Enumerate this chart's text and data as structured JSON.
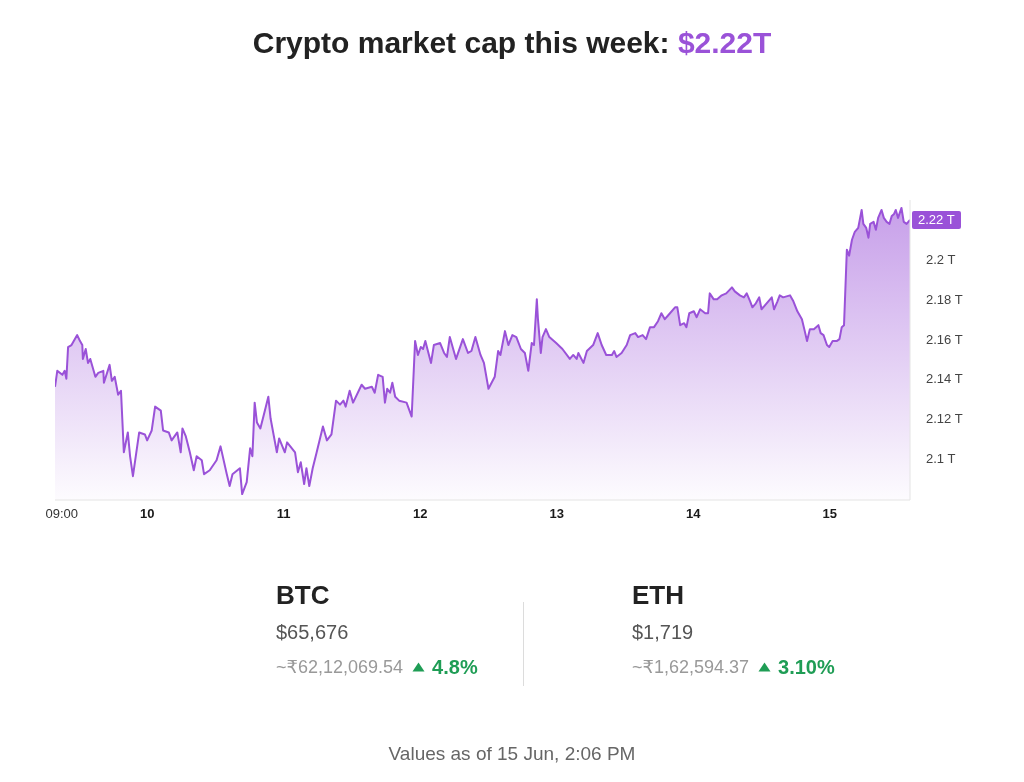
{
  "chart_data": [
    {
      "type": "area",
      "title": "Crypto market cap this week: $2.22T",
      "color": "#9a52d8",
      "x": [
        "--06-09T07:48",
        "--06-09T08:12",
        "--06-09T09:06",
        "--06-09T09:30",
        "--06-09T09:48",
        "--06-09T10:06",
        "--06-09T10:42",
        "--06-09T11:42",
        "--06-09T12:12",
        "--06-09T12:36",
        "--06-09T12:42",
        "--06-09T13:12",
        "--06-09T13:36",
        "--06-09T14:00",
        "--06-09T14:54",
        "--06-09T15:24",
        "--06-09T16:18",
        "--06-09T16:24",
        "--06-09T17:24",
        "--06-09T17:48",
        "--06-09T18:18",
        "--06-09T18:54",
        "--06-09T19:24",
        "--06-09T19:54",
        "--06-09T20:36",
        "--06-09T21:00",
        "--06-09T21:30",
        "--06-09T22:36",
        "--06-09T23:36",
        "--06-10T00:00",
        "--06-10T00:48",
        "--06-10T01:24",
        "--06-10T02:24",
        "--06-10T02:48",
        "--06-10T03:48",
        "--06-10T04:18",
        "--06-10T05:18",
        "--06-10T05:54",
        "--06-10T06:12",
        "--06-10T06:48",
        "--06-10T07:30",
        "--06-10T08:12",
        "--06-10T08:42",
        "--06-10T09:36",
        "--06-10T10:00",
        "--06-10T11:00",
        "--06-10T12:12",
        "--06-10T12:54",
        "--06-10T14:00",
        "--06-10T14:30",
        "--06-10T15:00",
        "--06-10T16:18",
        "--06-10T16:42",
        "--06-10T17:30",
        "--06-10T18:06",
        "--06-10T18:30",
        "--06-10T18:54",
        "--06-10T19:18",
        "--06-10T19:54",
        "--06-10T20:42",
        "--06-10T21:18",
        "--06-10T21:42",
        "--06-10T22:48",
        "--06-10T23:12",
        "--06-11T00:12",
        "--06-11T00:36",
        "--06-11T02:00",
        "--06-11T02:30",
        "--06-11T03:00",
        "--06-11T03:36",
        "--06-11T04:00",
        "--06-11T04:30",
        "--06-11T05:06",
        "--06-11T05:48",
        "--06-11T06:54",
        "--06-11T07:36",
        "--06-11T08:24",
        "--06-11T09:12",
        "--06-11T09:54",
        "--06-11T10:30",
        "--06-11T10:54",
        "--06-11T11:36",
        "--06-11T12:12",
        "--06-11T13:42",
        "--06-11T14:18",
        "--06-11T15:30",
        "--06-11T16:00",
        "--06-11T16:36",
        "--06-11T17:24",
        "--06-11T17:48",
        "--06-11T18:12",
        "--06-11T18:42",
        "--06-11T19:06",
        "--06-11T19:36",
        "--06-11T20:18",
        "--06-11T21:36",
        "--06-11T22:30",
        "--06-11T23:06",
        "--06-11T23:36",
        "--06-12T00:06",
        "--06-12T00:30",
        "--06-12T00:54",
        "--06-12T01:54",
        "--06-12T02:24",
        "--06-12T03:30",
        "--06-12T04:12",
        "--06-12T04:42",
        "--06-12T05:12",
        "--06-12T06:18",
        "--06-12T07:30",
        "--06-12T08:24",
        "--06-12T09:00",
        "--06-12T09:42",
        "--06-12T10:36",
        "--06-12T11:12",
        "--06-12T12:00",
        "--06-12T13:06",
        "--06-12T13:42",
        "--06-12T14:06",
        "--06-12T14:54",
        "--06-12T15:30",
        "--06-12T16:12",
        "--06-12T16:54",
        "--06-12T17:42",
        "--06-12T18:24",
        "--06-12T19:00",
        "--06-12T19:36",
        "--06-12T20:00",
        "--06-12T20:30",
        "--06-12T20:42",
        "--06-12T21:12",
        "--06-12T21:30",
        "--06-12T22:06",
        "--06-12T22:42",
        "--06-12T23:54",
        "--06-13T01:00",
        "--06-13T02:18",
        "--06-13T02:54",
        "--06-13T03:30",
        "--06-13T03:48",
        "--06-13T04:42",
        "--06-13T05:18",
        "--06-13T06:24",
        "--06-13T07:12",
        "--06-13T07:54",
        "--06-13T08:42",
        "--06-13T09:42",
        "--06-13T10:06",
        "--06-13T10:30",
        "--06-13T11:24",
        "--06-13T12:18",
        "--06-13T12:54",
        "--06-13T13:48",
        "--06-13T14:18",
        "--06-13T15:06",
        "--06-13T15:42",
        "--06-13T16:24",
        "--06-13T17:06",
        "--06-13T17:48",
        "--06-13T18:24",
        "--06-13T19:00",
        "--06-13T19:36",
        "--06-13T20:48",
        "--06-13T21:12",
        "--06-13T21:42",
        "--06-13T22:24",
        "--06-13T22:48",
        "--06-13T23:18",
        "--06-14T00:06",
        "--06-14T00:36",
        "--06-14T01:12",
        "--06-14T02:06",
        "--06-14T02:36",
        "--06-14T02:54",
        "--06-14T03:36",
        "--06-14T04:12",
        "--06-14T05:00",
        "--06-14T05:48",
        "--06-14T06:48",
        "--06-14T07:18",
        "--06-14T08:12",
        "--06-14T08:54",
        "--06-14T09:24",
        "--06-14T10:00",
        "--06-14T10:24",
        "--06-14T11:00",
        "--06-14T11:36",
        "--06-14T12:00",
        "--06-14T12:54",
        "--06-14T13:48",
        "--06-14T14:12",
        "--06-14T14:48",
        "--06-14T15:12",
        "--06-14T15:48",
        "--06-14T17:00",
        "--06-14T17:36",
        "--06-14T18:18",
        "--06-14T19:06",
        "--06-14T19:36",
        "--06-14T20:00",
        "--06-14T20:30",
        "--06-14T21:12",
        "--06-14T22:00",
        "--06-14T22:24",
        "--06-14T22:54",
        "--06-14T23:30",
        "--06-14T23:54",
        "--06-15T00:30",
        "--06-15T01:12",
        "--06-15T01:42",
        "--06-15T02:06",
        "--06-15T02:30",
        "--06-15T03:00",
        "--06-15T03:24",
        "--06-15T03:54",
        "--06-15T04:24",
        "--06-15T05:00",
        "--06-15T05:36",
        "--06-15T05:54",
        "--06-15T06:24",
        "--06-15T06:48",
        "--06-15T07:06",
        "--06-15T07:42",
        "--06-15T08:06",
        "--06-15T08:30",
        "--06-15T09:06",
        "--06-15T09:30",
        "--06-15T10:00",
        "--06-15T10:30",
        "--06-15T10:54",
        "--06-15T11:18",
        "--06-15T11:36",
        "--06-15T12:00",
        "--06-15T12:36",
        "--06-15T13:00",
        "--06-15T13:30",
        "--06-15T14:06"
      ],
      "values": [
        2.136,
        2.144,
        2.142,
        2.144,
        2.14,
        2.156,
        2.157,
        2.162,
        2.159,
        2.157,
        2.15,
        2.155,
        2.148,
        2.15,
        2.141,
        2.143,
        2.144,
        2.138,
        2.147,
        2.139,
        2.141,
        2.132,
        2.134,
        2.103,
        2.113,
        2.101,
        2.091,
        2.113,
        2.112,
        2.109,
        2.114,
        2.126,
        2.124,
        2.114,
        2.113,
        2.109,
        2.113,
        2.103,
        2.115,
        2.111,
        2.103,
        2.094,
        2.101,
        2.099,
        2.092,
        2.094,
        2.099,
        2.106,
        2.092,
        2.086,
        2.092,
        2.095,
        2.082,
        2.088,
        2.105,
        2.101,
        2.128,
        2.118,
        2.115,
        2.124,
        2.131,
        2.12,
        2.103,
        2.11,
        2.103,
        2.108,
        2.103,
        2.093,
        2.098,
        2.087,
        2.095,
        2.086,
        2.095,
        2.103,
        2.116,
        2.109,
        2.112,
        2.129,
        2.127,
        2.129,
        2.126,
        2.134,
        2.128,
        2.137,
        2.135,
        2.136,
        2.133,
        2.142,
        2.141,
        2.128,
        2.135,
        2.133,
        2.138,
        2.131,
        2.129,
        2.128,
        2.121,
        2.159,
        2.152,
        2.156,
        2.155,
        2.159,
        2.148,
        2.157,
        2.158,
        2.153,
        2.151,
        2.161,
        2.15,
        2.16,
        2.153,
        2.154,
        2.161,
        2.152,
        2.148,
        2.135,
        2.141,
        2.154,
        2.152,
        2.164,
        2.157,
        2.162,
        2.161,
        2.155,
        2.153,
        2.144,
        2.158,
        2.157,
        2.18,
        2.17,
        2.153,
        2.161,
        2.165,
        2.161,
        2.158,
        2.155,
        2.15,
        2.152,
        2.15,
        2.153,
        2.148,
        2.154,
        2.157,
        2.163,
        2.157,
        2.152,
        2.152,
        2.154,
        2.151,
        2.153,
        2.157,
        2.162,
        2.163,
        2.161,
        2.162,
        2.16,
        2.166,
        2.166,
        2.169,
        2.173,
        2.17,
        2.172,
        2.176,
        2.176,
        2.167,
        2.168,
        2.166,
        2.173,
        2.174,
        2.171,
        2.175,
        2.173,
        2.173,
        2.183,
        2.18,
        2.18,
        2.182,
        2.183,
        2.186,
        2.184,
        2.182,
        2.181,
        2.183,
        2.179,
        2.176,
        2.178,
        2.181,
        2.175,
        2.178,
        2.181,
        2.175,
        2.179,
        2.182,
        2.181,
        2.182,
        2.179,
        2.174,
        2.17,
        2.164,
        2.159,
        2.165,
        2.165,
        2.167,
        2.163,
        2.162,
        2.157,
        2.156,
        2.159,
        2.159,
        2.16,
        2.166,
        2.167,
        2.205,
        2.202,
        2.21,
        2.214,
        2.216,
        2.225,
        2.218,
        2.216,
        2.211,
        2.218,
        2.219,
        2.215,
        2.221,
        2.225,
        2.221,
        2.219,
        2.218,
        2.222,
        2.223,
        2.225,
        2.221,
        2.226,
        2.219,
        2.218,
        2.22
      ],
      "xlim": [
        "--06-09T07:48",
        "--06-15T14:06"
      ],
      "xticks": [
        {
          "value": "--06-09T09:00",
          "label": "09:00"
        },
        {
          "value": "--06-10",
          "label": "10"
        },
        {
          "value": "--06-11",
          "label": "11"
        },
        {
          "value": "--06-12",
          "label": "12"
        },
        {
          "value": "--06-13",
          "label": "13"
        },
        {
          "value": "--06-14",
          "label": "14"
        },
        {
          "value": "--06-15",
          "label": "15"
        }
      ],
      "ylim": [
        2.079,
        2.23
      ],
      "yticks": [
        {
          "value": 2.1,
          "label": "2.1 T"
        },
        {
          "value": 2.12,
          "label": "2.12 T"
        },
        {
          "value": 2.14,
          "label": "2.14 T"
        },
        {
          "value": 2.16,
          "label": "2.16 T"
        },
        {
          "value": 2.18,
          "label": "2.18 T"
        },
        {
          "value": 2.2,
          "label": "2.2 T"
        }
      ],
      "annotations": [
        {
          "text": "2.22 T",
          "x": "--06-15T14:06",
          "y": 2.22
        },
        "Values as of 15 Jun, 2:06 PM"
      ]
    },
    {
      "type": "other",
      "annotations": [
        "BTC",
        "$65,676",
        "~₹62,12,069.54",
        "4.8%",
        "ETH",
        "$1,719",
        "~₹1,62,594.37",
        "3.10%"
      ]
    }
  ]
}
